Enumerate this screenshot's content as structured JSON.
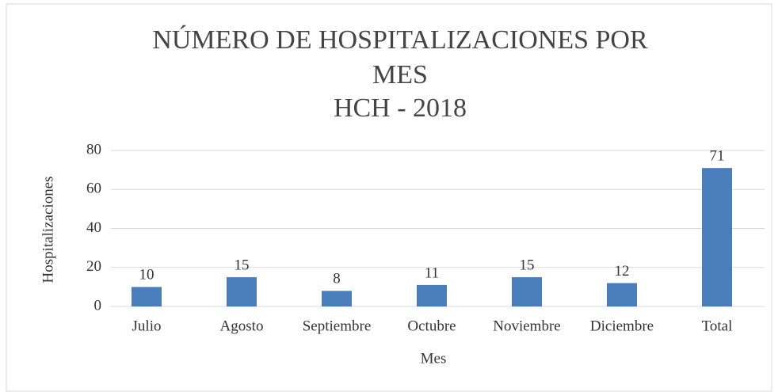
{
  "chart_data": {
    "type": "bar",
    "title": [
      "NÚMERO DE HOSPITALIZACIONES POR",
      "MES",
      "HCH - 2018"
    ],
    "x_label": "Mes",
    "y_label": "Hospitalizaciones",
    "categories": [
      "Julio",
      "Agosto",
      "Septiembre",
      "Octubre",
      "Noviembre",
      "Diciembre",
      "Total"
    ],
    "values": [
      10,
      15,
      8,
      11,
      15,
      12,
      71
    ],
    "color": "#4a7ebb",
    "ylim": [
      0,
      80
    ],
    "yticks": [
      0,
      20,
      40,
      60,
      80
    ],
    "grid": true
  }
}
